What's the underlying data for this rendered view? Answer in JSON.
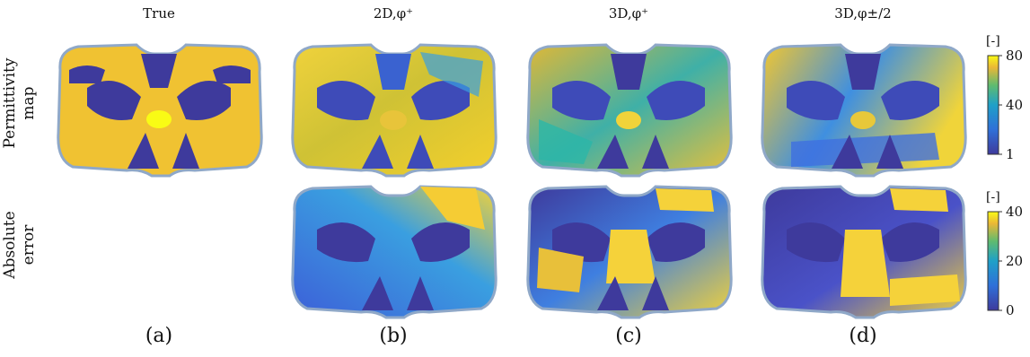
{
  "columns": [
    {
      "title": "True",
      "sub": "(a)"
    },
    {
      "title": "2D,φ⁺",
      "sub": "(b)"
    },
    {
      "title": "3D,φ⁺",
      "sub": "(c)"
    },
    {
      "title": "3D,φ±/2",
      "sub": "(d)"
    }
  ],
  "rows": [
    {
      "label_line1": "Permittivity",
      "label_line2": "map"
    },
    {
      "label_line1": "Absolute",
      "label_line2": "error"
    }
  ],
  "colorbars": [
    {
      "unit": "[-]",
      "ticks": [
        "80",
        "40",
        "1"
      ]
    },
    {
      "unit": "[-]",
      "ticks": [
        "40",
        "20",
        "0"
      ]
    }
  ],
  "colors": {
    "parula_low": "#3e3a9c",
    "parula_mid": "#1fa0c8",
    "parula_teal": "#2cb7a8",
    "parula_high": "#f5c62a",
    "parula_top": "#f9fb15",
    "outline": "#8fa8c8"
  }
}
